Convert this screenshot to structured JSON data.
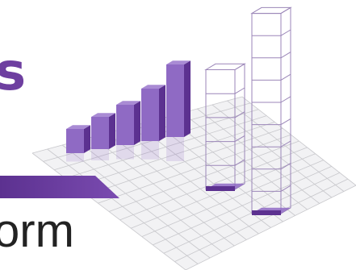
{
  "heading_fragment": "s",
  "caption_fragment": "orm",
  "colors": {
    "accent": "#6e3fa0",
    "bar_light": "#8f6ac4",
    "bar_dark": "#5c3190",
    "grid": "#c8c8cc",
    "text": "#222222"
  },
  "graphic": {
    "solid_bar_levels": [
      0.12,
      0.16,
      0.2,
      0.26,
      0.36
    ],
    "wireframe_tower_levels": [
      0.55,
      0.92
    ],
    "icons": [
      "3d-bar-chart-icon"
    ]
  }
}
